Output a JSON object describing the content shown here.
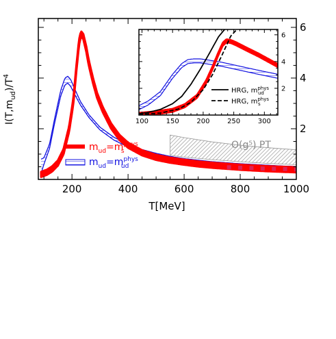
{
  "chart_data": [
    {
      "type": "line",
      "ylabel": "I(T,m_ud)/T^4",
      "ylabel_parts": {
        "a": "I(T,m",
        "sub": "ud",
        "b": ")/T",
        "sup": "4"
      },
      "xlabel": "T[MeV]",
      "xlim": [
        80,
        1000
      ],
      "ylim": [
        0,
        6.35
      ],
      "xticks": [
        200,
        400,
        600,
        800,
        1000
      ],
      "yticks": [
        2,
        4,
        6
      ],
      "x_minor_step": 50,
      "y_minor_step": 0.5,
      "grid": false,
      "legend_position": "lower-left",
      "colors": {
        "phys_s": "#ff0000",
        "phys_ud": "#1010e0",
        "pt_band": "#999999",
        "pt_label": "#888888",
        "red_points": "#dd2255"
      },
      "series": [
        {
          "id": "ms",
          "legend": {
            "base": "m",
            "sub": "ud",
            "eq": "=m",
            "sup": "phys",
            "sub2": "s"
          },
          "x": [
            90,
            110,
            130,
            150,
            170,
            190,
            205,
            215,
            225,
            232,
            240,
            250,
            260,
            275,
            290,
            310,
            340,
            370,
            400,
            450,
            500,
            550,
            600,
            650,
            700,
            750,
            800,
            850,
            900,
            950,
            1000
          ],
          "y": [
            0.2,
            0.28,
            0.42,
            0.65,
            1.1,
            2.0,
            3.1,
            4.3,
            5.4,
            5.75,
            5.65,
            5.2,
            4.6,
            3.9,
            3.3,
            2.75,
            2.1,
            1.65,
            1.35,
            1.05,
            0.87,
            0.76,
            0.68,
            0.61,
            0.56,
            0.52,
            0.48,
            0.45,
            0.42,
            0.4,
            0.38
          ],
          "band": 0.1
        },
        {
          "id": "mud",
          "legend": {
            "base": "m",
            "sub": "ud",
            "eq": "=m",
            "sup": "phys",
            "sub2": "ud"
          },
          "x": [
            90,
            100,
            120,
            140,
            160,
            175,
            185,
            195,
            210,
            230,
            260,
            300,
            350,
            400,
            450,
            500,
            550,
            600,
            650,
            700,
            750,
            800,
            850,
            900,
            950,
            1000
          ],
          "y": [
            0.5,
            0.7,
            1.3,
            2.4,
            3.4,
            3.85,
            3.92,
            3.8,
            3.45,
            3.0,
            2.5,
            2.0,
            1.6,
            1.33,
            1.12,
            0.97,
            0.85,
            0.76,
            0.7,
            0.64,
            0.6,
            0.56,
            0.53,
            0.5,
            0.47,
            0.45
          ],
          "band_low": [
            0.25,
            0.1,
            0.08,
            0.08,
            0.1,
            0.12,
            0.12,
            0.12,
            0.1,
            0.06,
            0.05,
            0.05,
            0.05,
            0.05,
            0.05,
            0.05,
            0.05,
            0.05,
            0.05,
            0.05,
            0.05,
            0.05,
            0.05,
            0.05,
            0.05,
            0.05
          ],
          "band_high": [
            0.3,
            0.15,
            0.1,
            0.1,
            0.12,
            0.15,
            0.15,
            0.15,
            0.12,
            0.08,
            0.06,
            0.06,
            0.06,
            0.06,
            0.06,
            0.06,
            0.06,
            0.06,
            0.06,
            0.06,
            0.06,
            0.06,
            0.06,
            0.06,
            0.06,
            0.06
          ]
        },
        {
          "id": "pt",
          "label": "O(g⁵) PT",
          "x": [
            550,
            600,
            700,
            800,
            900,
            1000
          ],
          "y_upper": [
            1.75,
            1.65,
            1.48,
            1.35,
            1.25,
            1.17
          ],
          "y_lower": [
            0.95,
            0.88,
            0.78,
            0.7,
            0.63,
            0.58
          ]
        }
      ],
      "red_points": {
        "x": [
          760,
          800,
          840,
          880,
          920,
          960,
          1000
        ],
        "y": [
          0.48,
          0.46,
          0.45,
          0.43,
          0.42,
          0.41,
          0.4
        ]
      }
    },
    {
      "type": "line",
      "title": "inset",
      "xlim": [
        95,
        322
      ],
      "ylim": [
        0,
        6.4
      ],
      "xticks": [
        100,
        150,
        200,
        250,
        300
      ],
      "yticks": [
        2,
        4,
        6
      ],
      "x_minor_step": 10,
      "y_minor_step": 0.5,
      "legend_position": "lower-right",
      "legend": [
        {
          "style": "solid",
          "label": {
            "base": "HRG, m",
            "sup": "phys",
            "sub": "ud"
          }
        },
        {
          "style": "dashed",
          "label": {
            "base": "HRG, m",
            "sup": "phys",
            "sub": "s"
          }
        }
      ],
      "series": [
        {
          "id": "hrg_ud",
          "style": "solid",
          "x": [
            95,
            110,
            130,
            150,
            165,
            180,
            195,
            210,
            225,
            235
          ],
          "y": [
            0.1,
            0.2,
            0.42,
            0.85,
            1.4,
            2.3,
            3.4,
            4.6,
            5.85,
            6.4
          ]
        },
        {
          "id": "hrg_s",
          "style": "dashed",
          "x": [
            95,
            130,
            160,
            180,
            200,
            215,
            230,
            245,
            255
          ],
          "y": [
            0.05,
            0.15,
            0.45,
            0.95,
            1.9,
            3.0,
            4.4,
            5.9,
            6.4
          ]
        },
        {
          "id": "ms",
          "x": [
            95,
            120,
            150,
            170,
            190,
            205,
            215,
            225,
            232,
            238,
            245,
            255,
            270,
            290,
            322
          ],
          "y": [
            0.05,
            0.15,
            0.35,
            0.7,
            1.4,
            2.5,
            3.5,
            4.6,
            5.3,
            5.55,
            5.5,
            5.3,
            4.95,
            4.5,
            3.7
          ],
          "band": 0.12
        },
        {
          "id": "mud",
          "x": [
            95,
            110,
            130,
            150,
            165,
            175,
            185,
            195,
            210,
            230,
            250,
            270,
            290,
            322
          ],
          "y": [
            0.55,
            0.9,
            1.6,
            2.9,
            3.7,
            4.0,
            4.05,
            4.05,
            3.95,
            3.8,
            3.6,
            3.4,
            3.2,
            2.9
          ],
          "band": 0.15
        }
      ]
    }
  ]
}
